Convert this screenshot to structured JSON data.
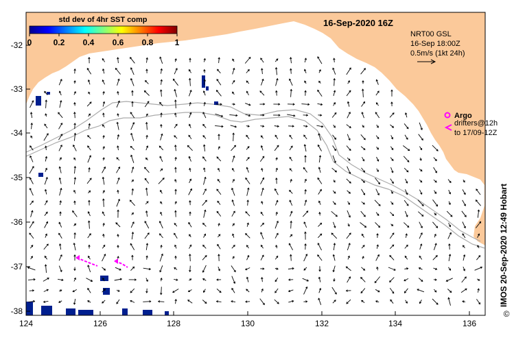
{
  "title": "16-Sep-2020 16Z",
  "colorbar": {
    "title": "std dev of 4hr SST comp",
    "ticks": [
      "0",
      "0.2",
      "0.4",
      "0.6",
      "0.8",
      "1"
    ]
  },
  "model_info": {
    "line1": "NRT00 GSL",
    "line2": "16-Sep 18:00Z",
    "line3": "0.5m/s (1kt 24h)"
  },
  "argo": {
    "label": "Argo",
    "drifters_line1": "drifters@12h",
    "drifters_line2": "to 17/09-12Z"
  },
  "credit": "IMOS 20-Sep-2020 12:49 Hobart",
  "copyright_symbol": "©",
  "axes": {
    "lon_labels": [
      "124",
      "126",
      "128",
      "130",
      "132",
      "134",
      "136"
    ],
    "lat_labels": [
      "-32",
      "-33",
      "-34",
      "-35",
      "-36",
      "-37",
      "-38"
    ]
  },
  "colors": {
    "land": "#fbc99a",
    "current_arrow": "#000000",
    "argo": "#ff00ff",
    "bathymetry": "#aaaaaa",
    "sst_patch": "#001f8f"
  }
}
